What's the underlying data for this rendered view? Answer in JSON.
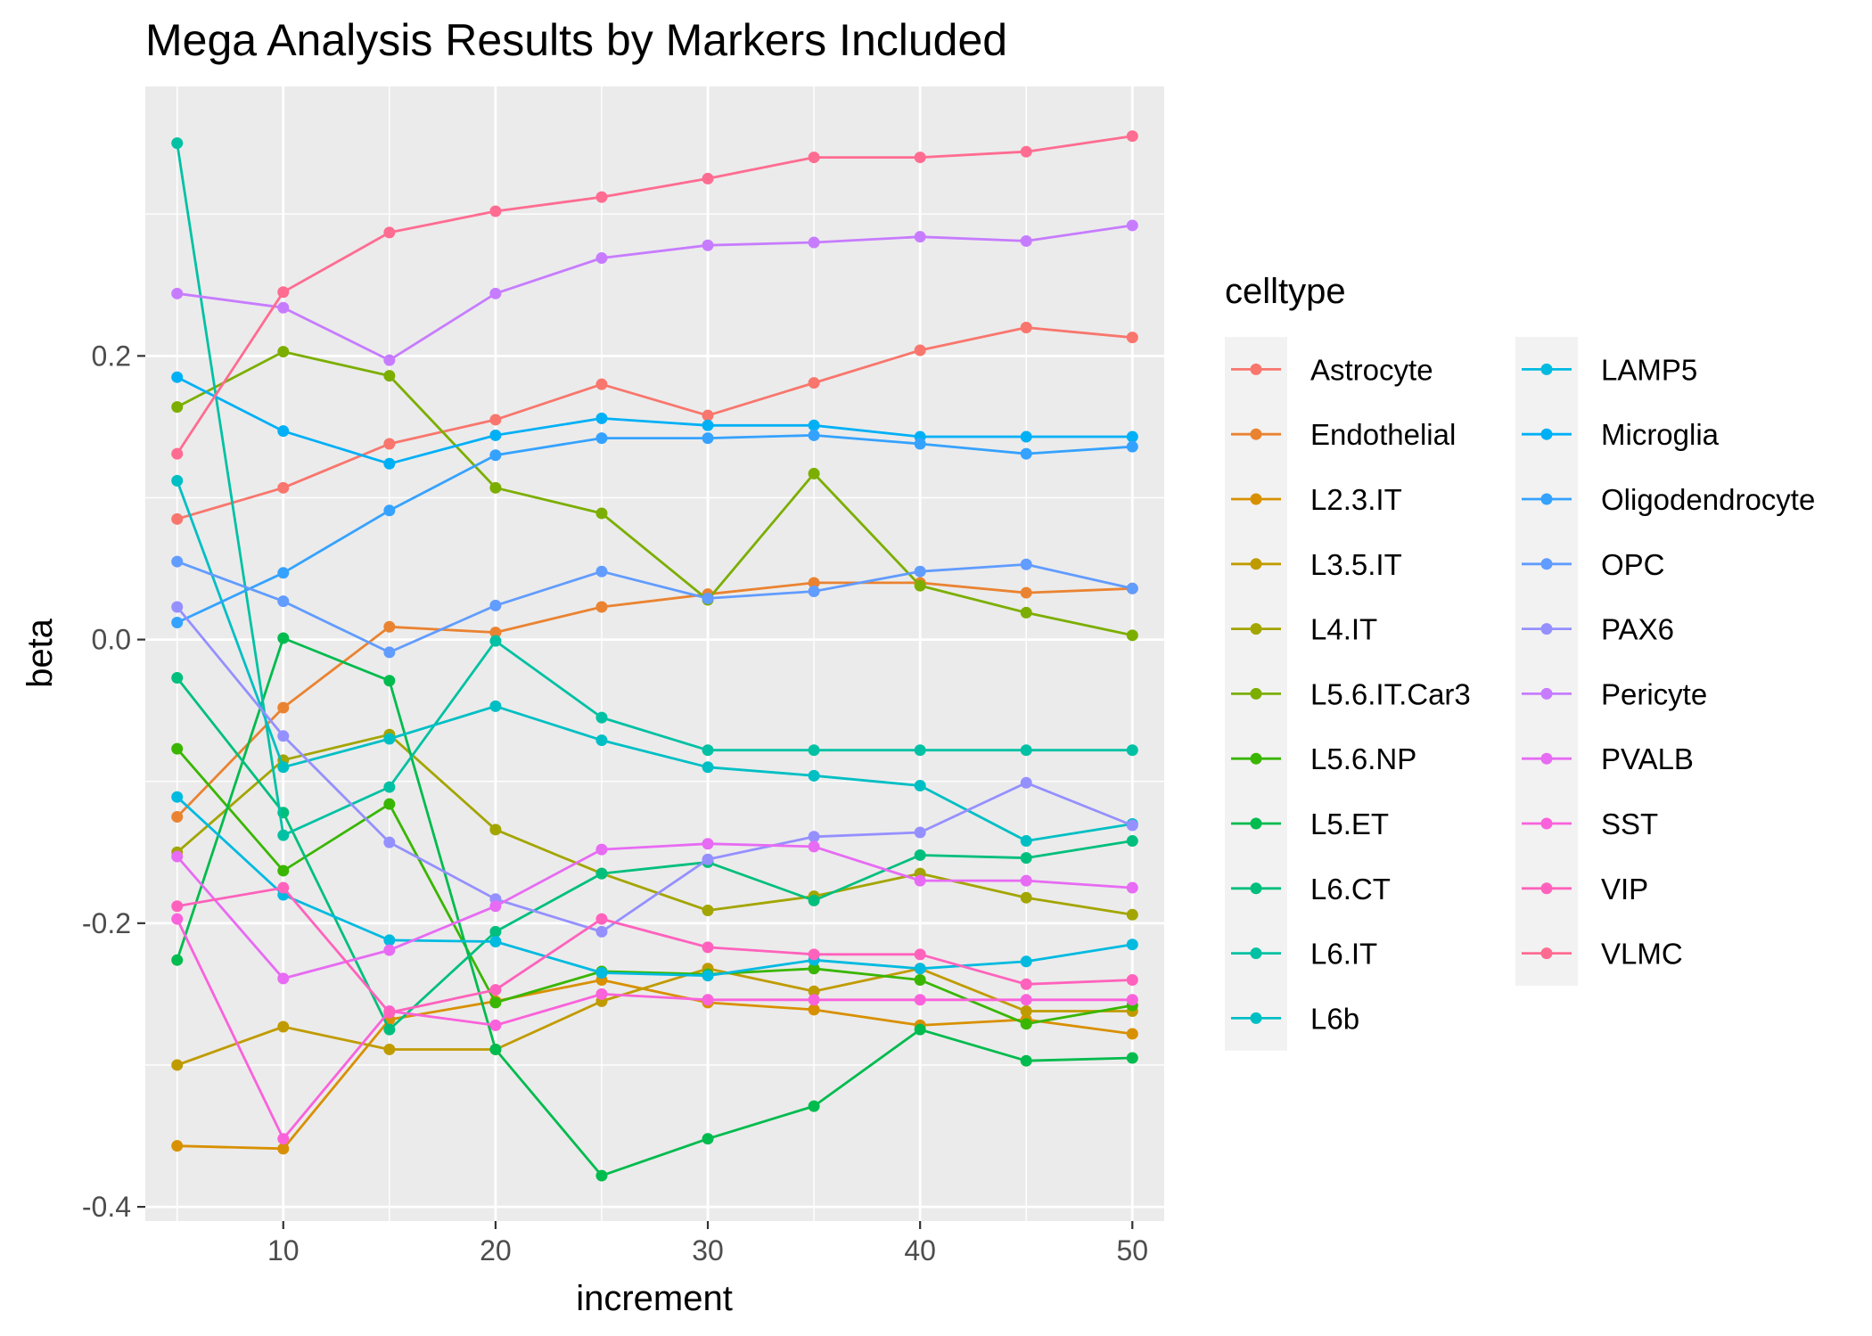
{
  "chart_data": {
    "type": "line",
    "title": "Mega Analysis Results by Markers Included",
    "xlabel": "increment",
    "ylabel": "beta",
    "xlim": [
      3.5,
      51.5
    ],
    "ylim": [
      -0.41,
      0.39
    ],
    "x_ticks": [
      10,
      20,
      30,
      40,
      50
    ],
    "y_ticks": [
      -0.4,
      -0.2,
      0.0,
      0.2
    ],
    "y_tick_labels": [
      "-0.4",
      "-0.2",
      "0.0",
      "0.2"
    ],
    "grid": true,
    "legend": {
      "title": "celltype",
      "position": "right",
      "columns": 2
    },
    "x": [
      5,
      10,
      15,
      20,
      25,
      30,
      35,
      40,
      45,
      50
    ],
    "series": [
      {
        "name": "Astrocyte",
        "color": "#F8766D",
        "values": [
          0.085,
          0.107,
          0.138,
          0.155,
          0.18,
          0.158,
          0.181,
          0.204,
          0.22,
          0.213
        ]
      },
      {
        "name": "Endothelial",
        "color": "#EA8331",
        "values": [
          -0.125,
          -0.048,
          0.009,
          0.005,
          0.023,
          0.032,
          0.04,
          0.04,
          0.033,
          0.036
        ]
      },
      {
        "name": "L2.3.IT",
        "color": "#D89000",
        "values": [
          -0.357,
          -0.359,
          -0.268,
          -0.255,
          -0.24,
          -0.256,
          -0.261,
          -0.272,
          -0.268,
          -0.278
        ]
      },
      {
        "name": "L3.5.IT",
        "color": "#C09B00",
        "values": [
          -0.3,
          -0.273,
          -0.289,
          -0.289,
          -0.255,
          -0.232,
          -0.248,
          -0.232,
          -0.262,
          -0.262
        ]
      },
      {
        "name": "L4.IT",
        "color": "#A3A500",
        "values": [
          -0.15,
          -0.085,
          -0.067,
          -0.134,
          -0.165,
          -0.191,
          -0.181,
          -0.165,
          -0.182,
          -0.194
        ]
      },
      {
        "name": "L5.6.IT.Car3",
        "color": "#7CAE00",
        "values": [
          0.164,
          0.203,
          0.186,
          0.107,
          0.089,
          0.028,
          0.117,
          0.038,
          0.019,
          0.003
        ]
      },
      {
        "name": "L5.6.NP",
        "color": "#39B600",
        "values": [
          -0.077,
          -0.163,
          -0.116,
          -0.256,
          -0.234,
          -0.236,
          -0.232,
          -0.24,
          -0.271,
          -0.258
        ]
      },
      {
        "name": "L5.ET",
        "color": "#00BB4E",
        "values": [
          -0.226,
          0.001,
          -0.029,
          -0.289,
          -0.378,
          -0.352,
          -0.329,
          -0.275,
          -0.297,
          -0.295
        ]
      },
      {
        "name": "L6.CT",
        "color": "#00BF7D",
        "values": [
          -0.027,
          -0.122,
          -0.275,
          -0.206,
          -0.165,
          -0.157,
          -0.184,
          -0.152,
          -0.154,
          -0.142
        ]
      },
      {
        "name": "L6.IT",
        "color": "#00C1A3",
        "values": [
          0.35,
          -0.138,
          -0.104,
          -0.001,
          -0.055,
          -0.078,
          -0.078,
          -0.078,
          -0.078,
          -0.078
        ]
      },
      {
        "name": "L6b",
        "color": "#00BFC4",
        "values": [
          0.112,
          -0.09,
          -0.07,
          -0.047,
          -0.071,
          -0.09,
          -0.096,
          -0.103,
          -0.142,
          -0.13
        ]
      },
      {
        "name": "LAMP5",
        "color": "#00BAE0",
        "values": [
          -0.111,
          -0.18,
          -0.212,
          -0.213,
          -0.235,
          -0.237,
          -0.226,
          -0.232,
          -0.227,
          -0.215
        ]
      },
      {
        "name": "Microglia",
        "color": "#00B0F6",
        "values": [
          0.185,
          0.147,
          0.124,
          0.144,
          0.156,
          0.151,
          0.151,
          0.143,
          0.143,
          0.143
        ]
      },
      {
        "name": "Oligodendrocyte",
        "color": "#35A2FF",
        "values": [
          0.012,
          0.047,
          0.091,
          0.13,
          0.142,
          0.142,
          0.144,
          0.138,
          0.131,
          0.136
        ]
      },
      {
        "name": "OPC",
        "color": "#619CFF",
        "values": [
          0.055,
          0.027,
          -0.009,
          0.024,
          0.048,
          0.029,
          0.034,
          0.048,
          0.053,
          0.036
        ]
      },
      {
        "name": "PAX6",
        "color": "#9590FF",
        "values": [
          0.023,
          -0.068,
          -0.143,
          -0.183,
          -0.206,
          -0.155,
          -0.139,
          -0.136,
          -0.101,
          -0.131
        ]
      },
      {
        "name": "Pericyte",
        "color": "#C77CFF",
        "values": [
          0.244,
          0.234,
          0.197,
          0.244,
          0.269,
          0.278,
          0.28,
          0.284,
          0.281,
          0.292
        ]
      },
      {
        "name": "PVALB",
        "color": "#E76BF3",
        "values": [
          -0.153,
          -0.239,
          -0.219,
          -0.188,
          -0.148,
          -0.144,
          -0.146,
          -0.17,
          -0.17,
          -0.175
        ]
      },
      {
        "name": "SST",
        "color": "#FA62DB",
        "values": [
          -0.197,
          -0.352,
          -0.262,
          -0.272,
          -0.25,
          -0.254,
          -0.254,
          -0.254,
          -0.254,
          -0.254
        ]
      },
      {
        "name": "VIP",
        "color": "#FF62BC",
        "values": [
          -0.188,
          -0.175,
          -0.263,
          -0.247,
          -0.197,
          -0.217,
          -0.222,
          -0.222,
          -0.243,
          -0.24
        ]
      },
      {
        "name": "VLMC",
        "color": "#FF6C91",
        "values": [
          0.131,
          0.245,
          0.287,
          0.302,
          0.312,
          0.325,
          0.34,
          0.34,
          0.344,
          0.355
        ]
      }
    ]
  }
}
